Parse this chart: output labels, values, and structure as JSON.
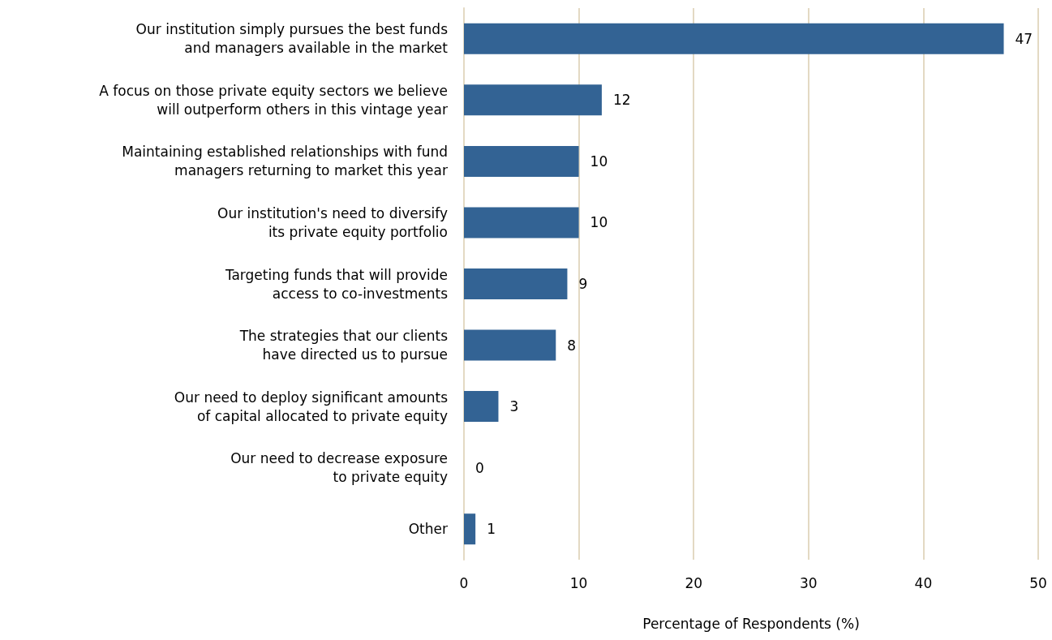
{
  "chart_data": {
    "type": "bar",
    "orientation": "horizontal",
    "xlabel": "Percentage of Respondents (%)",
    "categories": [
      "Our institution simply pursues the best funds\nand managers available in the market",
      "A focus on those private equity sectors we believe\nwill outperform others in this vintage year",
      "Maintaining established relationships with fund\nmanagers returning to market this year",
      "Our institution's need to diversify\nits private equity portfolio",
      "Targeting funds that will provide\naccess to co-investments",
      "The strategies that our clients\nhave directed us to pursue",
      "Our need to deploy significant amounts\nof capital allocated to private equity",
      "Our need to decrease exposure\nto private equity",
      "Other"
    ],
    "values": [
      47,
      12,
      10,
      10,
      9,
      8,
      3,
      0,
      1
    ],
    "color": "#336394",
    "xlim": [
      0,
      50
    ],
    "xticks": [
      0,
      10,
      20,
      30,
      40,
      50
    ],
    "grid": "x",
    "data_labels": true
  }
}
